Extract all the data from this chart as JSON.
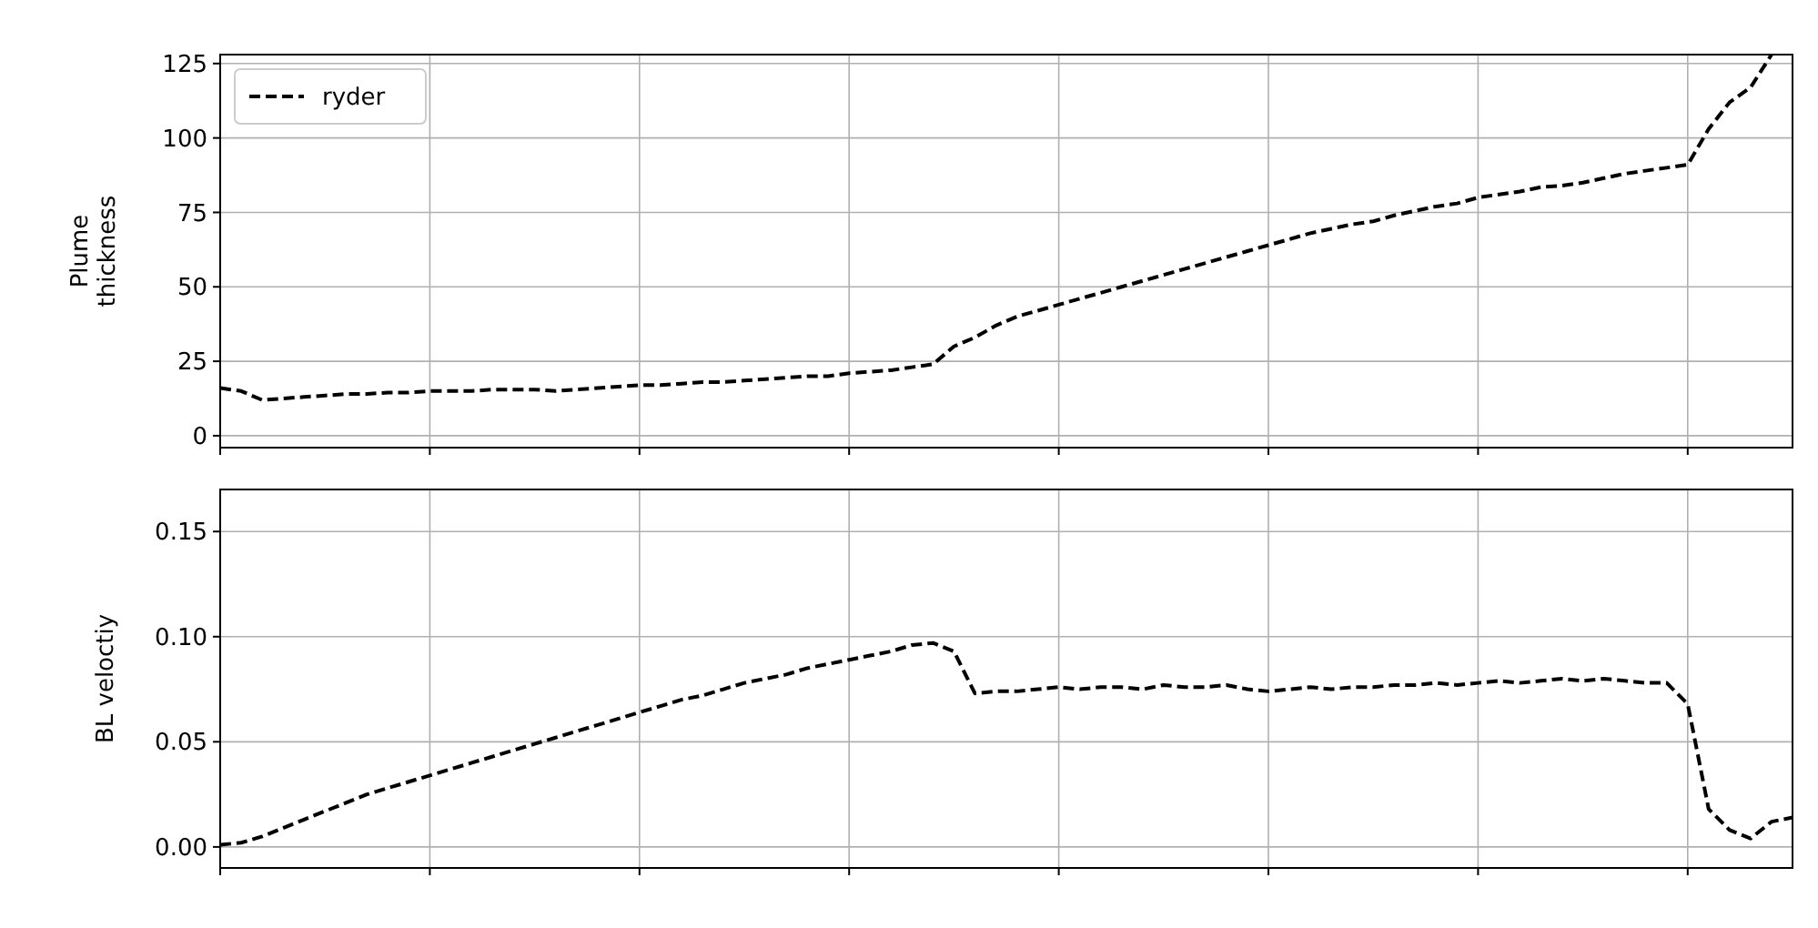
{
  "chart_data": [
    {
      "type": "line",
      "ylabel": "Plume\nthickness",
      "categories": [
        null,
        null,
        null,
        null,
        null,
        null,
        null,
        null,
        null,
        null,
        null,
        null,
        null,
        null,
        null,
        null,
        null,
        null,
        null,
        null,
        null,
        null,
        null,
        null,
        null,
        null,
        null,
        null,
        null,
        null,
        null,
        null,
        null,
        null,
        null,
        null,
        null,
        null,
        null,
        null,
        null,
        null,
        null,
        null,
        null,
        null,
        null,
        null,
        null,
        null,
        null,
        null,
        null,
        null,
        null,
        null,
        null,
        null,
        null,
        null,
        null,
        null,
        null,
        null,
        null,
        null,
        null,
        null,
        null,
        null,
        null,
        null,
        null,
        null,
        null,
        null
      ],
      "series": [
        {
          "name": "ryder",
          "color": "#000000",
          "line_style": "dashed",
          "values": [
            16,
            15,
            12,
            12.5,
            13,
            13.5,
            14,
            14,
            14.5,
            14.5,
            15,
            15,
            15,
            15.5,
            15.5,
            15.5,
            15,
            15.5,
            16,
            16.5,
            17,
            17,
            17.5,
            18,
            18,
            18.5,
            19,
            19.5,
            20,
            20,
            21,
            21.5,
            22,
            23,
            24,
            30,
            33,
            37,
            40,
            42,
            44,
            46,
            48,
            50,
            52,
            54,
            56,
            58,
            60,
            62,
            64,
            66,
            68,
            69.5,
            71,
            72,
            74,
            75.5,
            77,
            78,
            80,
            81,
            82,
            83.5,
            84,
            85,
            86.5,
            88,
            89,
            90,
            91,
            103,
            112,
            117,
            128,
            null
          ]
        }
      ],
      "ylim": [
        -4,
        128
      ],
      "yticks": [
        0,
        25,
        50,
        75,
        100,
        125
      ],
      "grid": true,
      "legend": "top left",
      "tick_labels": "y"
    },
    {
      "type": "line",
      "ylabel": "BL veloctiy",
      "categories": [
        null,
        null,
        null,
        null,
        null,
        null,
        null,
        null,
        null,
        null,
        null,
        null,
        null,
        null,
        null,
        null,
        null,
        null,
        null,
        null,
        null,
        null,
        null,
        null,
        null,
        null,
        null,
        null,
        null,
        null,
        null,
        null,
        null,
        null,
        null,
        null,
        null,
        null,
        null,
        null,
        null,
        null,
        null,
        null,
        null,
        null,
        null,
        null,
        null,
        null,
        null,
        null,
        null,
        null,
        null,
        null,
        null,
        null,
        null,
        null,
        null,
        null,
        null,
        null,
        null,
        null,
        null,
        null,
        null,
        null,
        null,
        null,
        null,
        null,
        null,
        null
      ],
      "series": [
        {
          "color": "#000000",
          "line_style": "dashed",
          "values": [
            0.001,
            0.002,
            0.005,
            0.009,
            0.013,
            0.017,
            0.021,
            0.025,
            0.028,
            0.031,
            0.034,
            0.037,
            0.04,
            0.043,
            0.046,
            0.049,
            0.052,
            0.055,
            0.058,
            0.061,
            0.064,
            0.067,
            0.07,
            0.072,
            0.075,
            0.078,
            0.08,
            0.082,
            0.085,
            0.087,
            0.089,
            0.091,
            0.093,
            0.096,
            0.097,
            0.093,
            0.073,
            0.074,
            0.074,
            0.075,
            0.076,
            0.075,
            0.076,
            0.076,
            0.075,
            0.077,
            0.076,
            0.076,
            0.077,
            0.075,
            0.074,
            0.075,
            0.076,
            0.075,
            0.076,
            0.076,
            0.077,
            0.077,
            0.078,
            0.077,
            0.078,
            0.079,
            0.078,
            0.079,
            0.08,
            0.079,
            0.08,
            0.079,
            0.078,
            0.078,
            0.068,
            0.018,
            0.008,
            0.004,
            0.012,
            0.014
          ]
        }
      ],
      "ylim": [
        -0.01,
        0.17
      ],
      "yticks": [
        {
          "value": 0,
          "label": "0.00"
        },
        {
          "value": 0.05,
          "label": "0.05"
        },
        {
          "value": 0.1,
          "label": "0.10"
        },
        {
          "value": 0.15,
          "label": "0.15"
        }
      ],
      "grid": true,
      "tick_labels": "y"
    }
  ]
}
